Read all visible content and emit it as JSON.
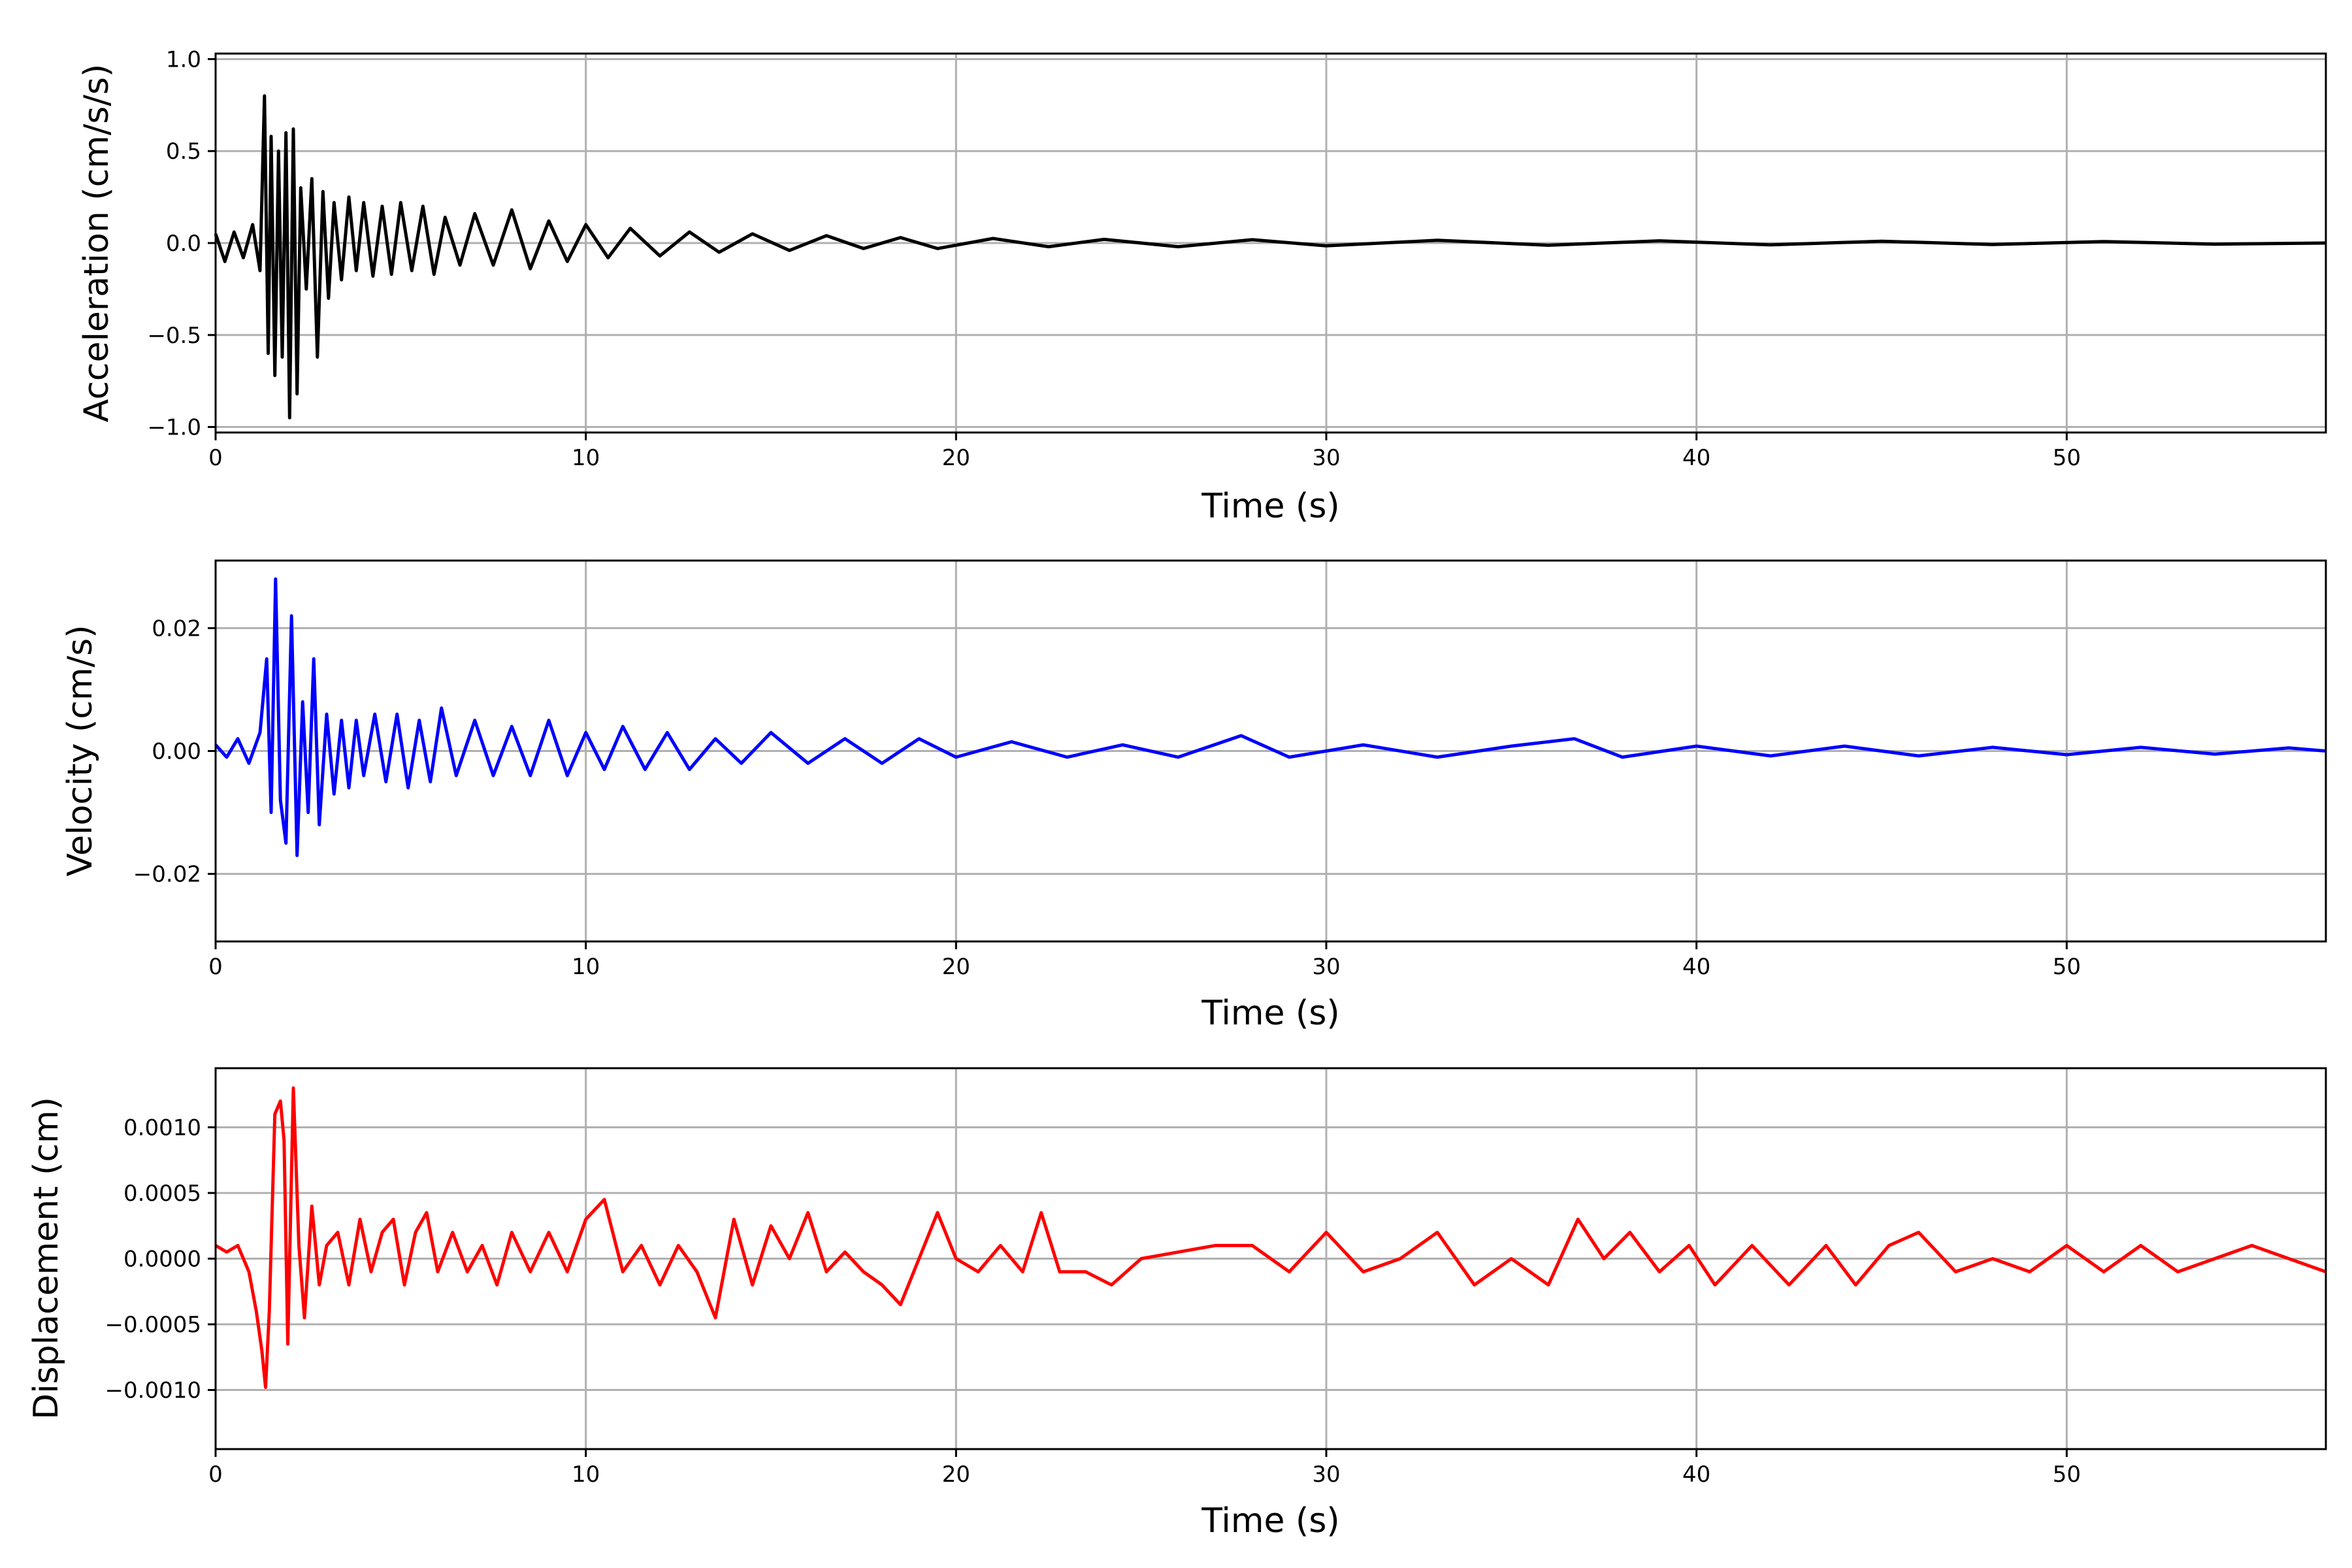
{
  "chart_data": [
    {
      "type": "line",
      "xlabel": "Time (s)",
      "ylabel": "Acceleration (cm/s/s)",
      "xlim": [
        0,
        57
      ],
      "ylim": [
        -1.03,
        1.03
      ],
      "xticks": [
        0,
        10,
        20,
        30,
        40,
        50
      ],
      "yticks": [
        -1.0,
        -0.5,
        0.0,
        0.5,
        1.0
      ],
      "ytick_labels": [
        "−1.0",
        "−0.5",
        "0.0",
        "0.5",
        "1.0"
      ],
      "grid": true,
      "color": "#000000",
      "series": [
        {
          "x": [
            0,
            0.25,
            0.5,
            0.75,
            1.0,
            1.2,
            1.32,
            1.42,
            1.5,
            1.6,
            1.7,
            1.8,
            1.9,
            2.0,
            2.1,
            2.2,
            2.3,
            2.45,
            2.6,
            2.75,
            2.9,
            3.05,
            3.2,
            3.4,
            3.6,
            3.8,
            4.0,
            4.25,
            4.5,
            4.75,
            5.0,
            5.3,
            5.6,
            5.9,
            6.2,
            6.6,
            7.0,
            7.5,
            8.0,
            8.5,
            9.0,
            9.5,
            10.0,
            10.6,
            11.2,
            12.0,
            12.8,
            13.6,
            14.5,
            15.5,
            16.5,
            17.5,
            18.5,
            19.5,
            21,
            22.5,
            24,
            26,
            28,
            30,
            33,
            36,
            39,
            42,
            45,
            48,
            51,
            54,
            57
          ],
          "y": [
            0.05,
            -0.1,
            0.06,
            -0.08,
            0.1,
            -0.15,
            0.8,
            -0.6,
            0.58,
            -0.72,
            0.5,
            -0.62,
            0.6,
            -0.95,
            0.62,
            -0.82,
            0.3,
            -0.25,
            0.35,
            -0.62,
            0.28,
            -0.3,
            0.22,
            -0.2,
            0.25,
            -0.15,
            0.22,
            -0.18,
            0.2,
            -0.17,
            0.22,
            -0.15,
            0.2,
            -0.17,
            0.14,
            -0.12,
            0.16,
            -0.12,
            0.18,
            -0.14,
            0.12,
            -0.1,
            0.1,
            -0.08,
            0.08,
            -0.07,
            0.06,
            -0.05,
            0.05,
            -0.04,
            0.04,
            -0.03,
            0.03,
            -0.03,
            0.025,
            -0.02,
            0.02,
            -0.02,
            0.018,
            -0.015,
            0.015,
            -0.012,
            0.012,
            -0.01,
            0.01,
            -0.008,
            0.008,
            -0.006,
            0.0
          ]
        }
      ]
    },
    {
      "type": "line",
      "xlabel": "Time (s)",
      "ylabel": "Velocity (cm/s)",
      "xlim": [
        0,
        57
      ],
      "ylim": [
        -0.031,
        0.031
      ],
      "xticks": [
        0,
        10,
        20,
        30,
        40,
        50
      ],
      "yticks": [
        -0.02,
        0.0,
        0.02
      ],
      "ytick_labels": [
        "−0.02",
        "0.00",
        "0.02"
      ],
      "grid": true,
      "color": "#0000ff",
      "series": [
        {
          "x": [
            0,
            0.3,
            0.6,
            0.9,
            1.2,
            1.38,
            1.5,
            1.62,
            1.75,
            1.9,
            2.05,
            2.2,
            2.35,
            2.5,
            2.65,
            2.8,
            3.0,
            3.2,
            3.4,
            3.6,
            3.8,
            4.0,
            4.3,
            4.6,
            4.9,
            5.2,
            5.5,
            5.8,
            6.1,
            6.5,
            7.0,
            7.5,
            8.0,
            8.5,
            9.0,
            9.5,
            10.0,
            10.5,
            11.0,
            11.6,
            12.2,
            12.8,
            13.5,
            14.2,
            15.0,
            16.0,
            17.0,
            18.0,
            19.0,
            20.0,
            21.5,
            23.0,
            24.5,
            26.0,
            27.7,
            29.0,
            31.0,
            33.0,
            35.0,
            36.7,
            38.0,
            40.0,
            42.0,
            44.0,
            46.0,
            48.0,
            50.0,
            52.0,
            54.0,
            56.0,
            57.0
          ],
          "y": [
            0.001,
            -0.001,
            0.002,
            -0.002,
            0.003,
            0.015,
            -0.01,
            0.028,
            -0.008,
            -0.015,
            0.022,
            -0.017,
            0.008,
            -0.01,
            0.015,
            -0.012,
            0.006,
            -0.007,
            0.005,
            -0.006,
            0.005,
            -0.004,
            0.006,
            -0.005,
            0.006,
            -0.006,
            0.005,
            -0.005,
            0.007,
            -0.004,
            0.005,
            -0.004,
            0.004,
            -0.004,
            0.005,
            -0.004,
            0.003,
            -0.003,
            0.004,
            -0.003,
            0.003,
            -0.003,
            0.002,
            -0.002,
            0.003,
            -0.002,
            0.002,
            -0.002,
            0.002,
            -0.001,
            0.0015,
            -0.001,
            0.001,
            -0.001,
            0.0025,
            -0.001,
            0.001,
            -0.001,
            0.0008,
            0.002,
            -0.001,
            0.0008,
            -0.0008,
            0.0008,
            -0.0008,
            0.0006,
            -0.0006,
            0.0006,
            -0.0005,
            0.0005,
            0.0
          ]
        }
      ]
    },
    {
      "type": "line",
      "xlabel": "Time (s)",
      "ylabel": "Displacement (cm)",
      "xlim": [
        0,
        57
      ],
      "ylim": [
        -0.00145,
        0.00145
      ],
      "xticks": [
        0,
        10,
        20,
        30,
        40,
        50
      ],
      "yticks": [
        -0.001,
        -0.0005,
        0.0,
        0.0005,
        0.001
      ],
      "ytick_labels": [
        "−0.0010",
        "−0.0005",
        "0.0000",
        "0.0005",
        "0.0010"
      ],
      "grid": true,
      "color": "#ff0000",
      "series": [
        {
          "x": [
            0,
            0.3,
            0.6,
            0.9,
            1.1,
            1.25,
            1.35,
            1.45,
            1.6,
            1.75,
            1.85,
            1.95,
            2.1,
            2.25,
            2.4,
            2.6,
            2.8,
            3.0,
            3.3,
            3.6,
            3.9,
            4.2,
            4.5,
            4.8,
            5.1,
            5.4,
            5.7,
            6.0,
            6.4,
            6.8,
            7.2,
            7.6,
            8.0,
            8.5,
            9.0,
            9.5,
            10.0,
            10.5,
            11.0,
            11.5,
            12.0,
            12.5,
            13.0,
            13.5,
            14.0,
            14.5,
            15.0,
            15.5,
            16.0,
            16.5,
            17.0,
            17.5,
            18.0,
            18.5,
            19.0,
            19.5,
            20.0,
            20.6,
            21.2,
            21.8,
            22.3,
            22.8,
            23.5,
            24.2,
            25.0,
            26.0,
            27.0,
            28.0,
            29.0,
            30.0,
            31.0,
            32.0,
            33.0,
            34.0,
            35.0,
            36.0,
            36.8,
            37.5,
            38.2,
            39.0,
            39.8,
            40.5,
            41.5,
            42.5,
            43.5,
            44.3,
            45.2,
            46.0,
            47.0,
            48.0,
            49.0,
            50.0,
            51.0,
            52.0,
            53.0,
            54.0,
            55.0,
            56.0,
            57.0
          ],
          "y": [
            0.0001,
            5e-05,
            0.0001,
            -0.0001,
            -0.0004,
            -0.0007,
            -0.00098,
            -0.0004,
            0.0011,
            0.0012,
            0.0009,
            -0.00065,
            0.0013,
            0.0001,
            -0.00045,
            0.0004,
            -0.0002,
            0.0001,
            0.0002,
            -0.0002,
            0.0003,
            -0.0001,
            0.0002,
            0.0003,
            -0.0002,
            0.0002,
            0.00035,
            -0.0001,
            0.0002,
            -0.0001,
            0.0001,
            -0.0002,
            0.0002,
            -0.0001,
            0.0002,
            -0.0001,
            0.0003,
            0.00045,
            -0.0001,
            0.0001,
            -0.0002,
            0.0001,
            -0.0001,
            -0.00045,
            0.0003,
            -0.0002,
            0.00025,
            0.0,
            0.00035,
            -0.0001,
            5e-05,
            -0.0001,
            -0.0002,
            -0.00035,
            0.0,
            0.00035,
            0.0,
            -0.0001,
            0.0001,
            -0.0001,
            0.00035,
            -0.0001,
            -0.0001,
            -0.0002,
            0.0,
            5e-05,
            0.0001,
            0.0001,
            -0.0001,
            0.0002,
            -0.0001,
            0.0,
            0.0002,
            -0.0002,
            0.0,
            -0.0002,
            0.0003,
            0.0,
            0.0002,
            -0.0001,
            0.0001,
            -0.0002,
            0.0001,
            -0.0002,
            0.0001,
            -0.0002,
            0.0001,
            0.0002,
            -0.0001,
            0.0,
            -0.0001,
            0.0001,
            -0.0001,
            0.0001,
            -0.0001,
            0.0,
            0.0001,
            0.0,
            -0.0001
          ]
        }
      ]
    }
  ]
}
